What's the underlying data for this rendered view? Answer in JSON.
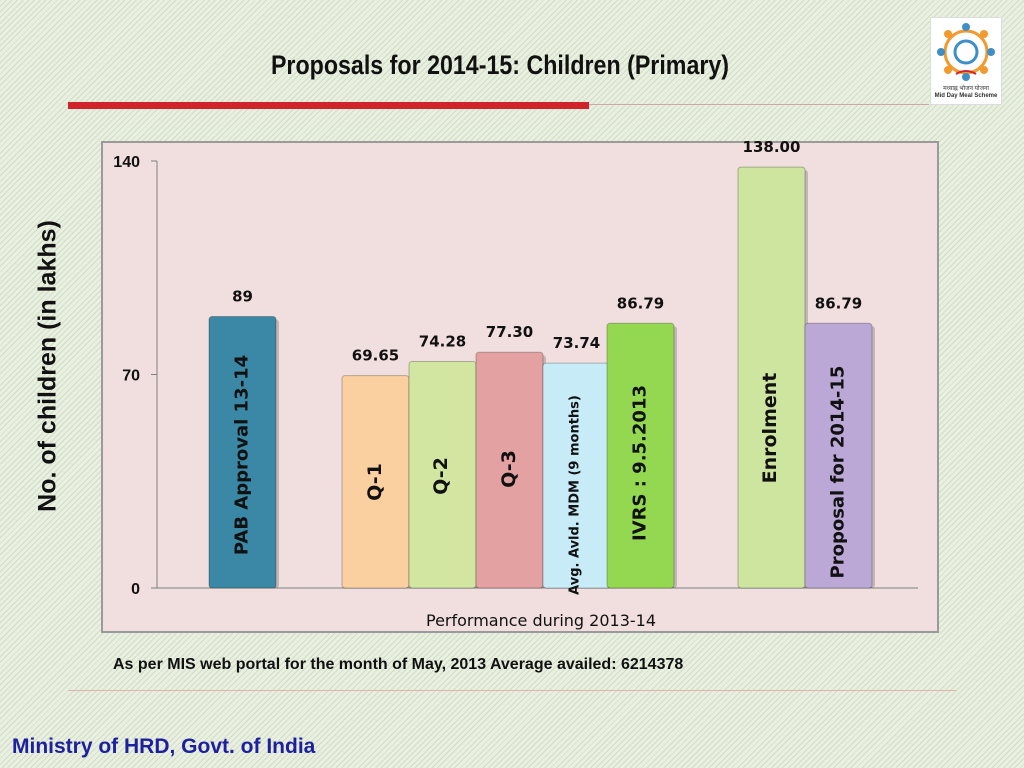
{
  "slide": {
    "title": "Proposals for 2014-15: Children (Primary)",
    "note": "As per MIS web portal for the month of May, 2013 Average availed: 6214378",
    "footer": "Ministry of HRD, Govt. of India",
    "logo_text": "मध्याह्न भोजन योजना",
    "logo_caption": "Mid Day Meal Scheme"
  },
  "chart_data": {
    "type": "bar",
    "title": "",
    "xlabel": "Performance during 2013-14",
    "ylabel": "No. of children (in lakhs)",
    "ylim": [
      0,
      140
    ],
    "yticks": [
      0,
      70,
      140
    ],
    "grid": false,
    "legend": "none",
    "categories": [
      "PAB Approval 13-14",
      "Q-1",
      "Q-2",
      "Q-3",
      "Avg. Avld. MDM (9 months)",
      "IVRS : 9.5.2013",
      "Enrolment",
      "Proposal for 2014-15"
    ],
    "values": [
      89,
      69.65,
      74.28,
      77.3,
      73.74,
      86.79,
      138.0,
      86.79
    ],
    "value_labels": [
      "89",
      "69.65",
      "74.28",
      "77.30",
      "73.74",
      "86.79",
      "138.00",
      "86.79"
    ],
    "colors": [
      "#3a88a5",
      "#fbd0a0",
      "#d2e6a2",
      "#e4a1a2",
      "#c7ecf7",
      "#93d850",
      "#cde59f",
      "#bba8d6"
    ],
    "label_colors": [
      "#111111",
      "#111111",
      "#111111",
      "#111111",
      "#111111",
      "#111111",
      "#111111",
      "#111111"
    ]
  }
}
